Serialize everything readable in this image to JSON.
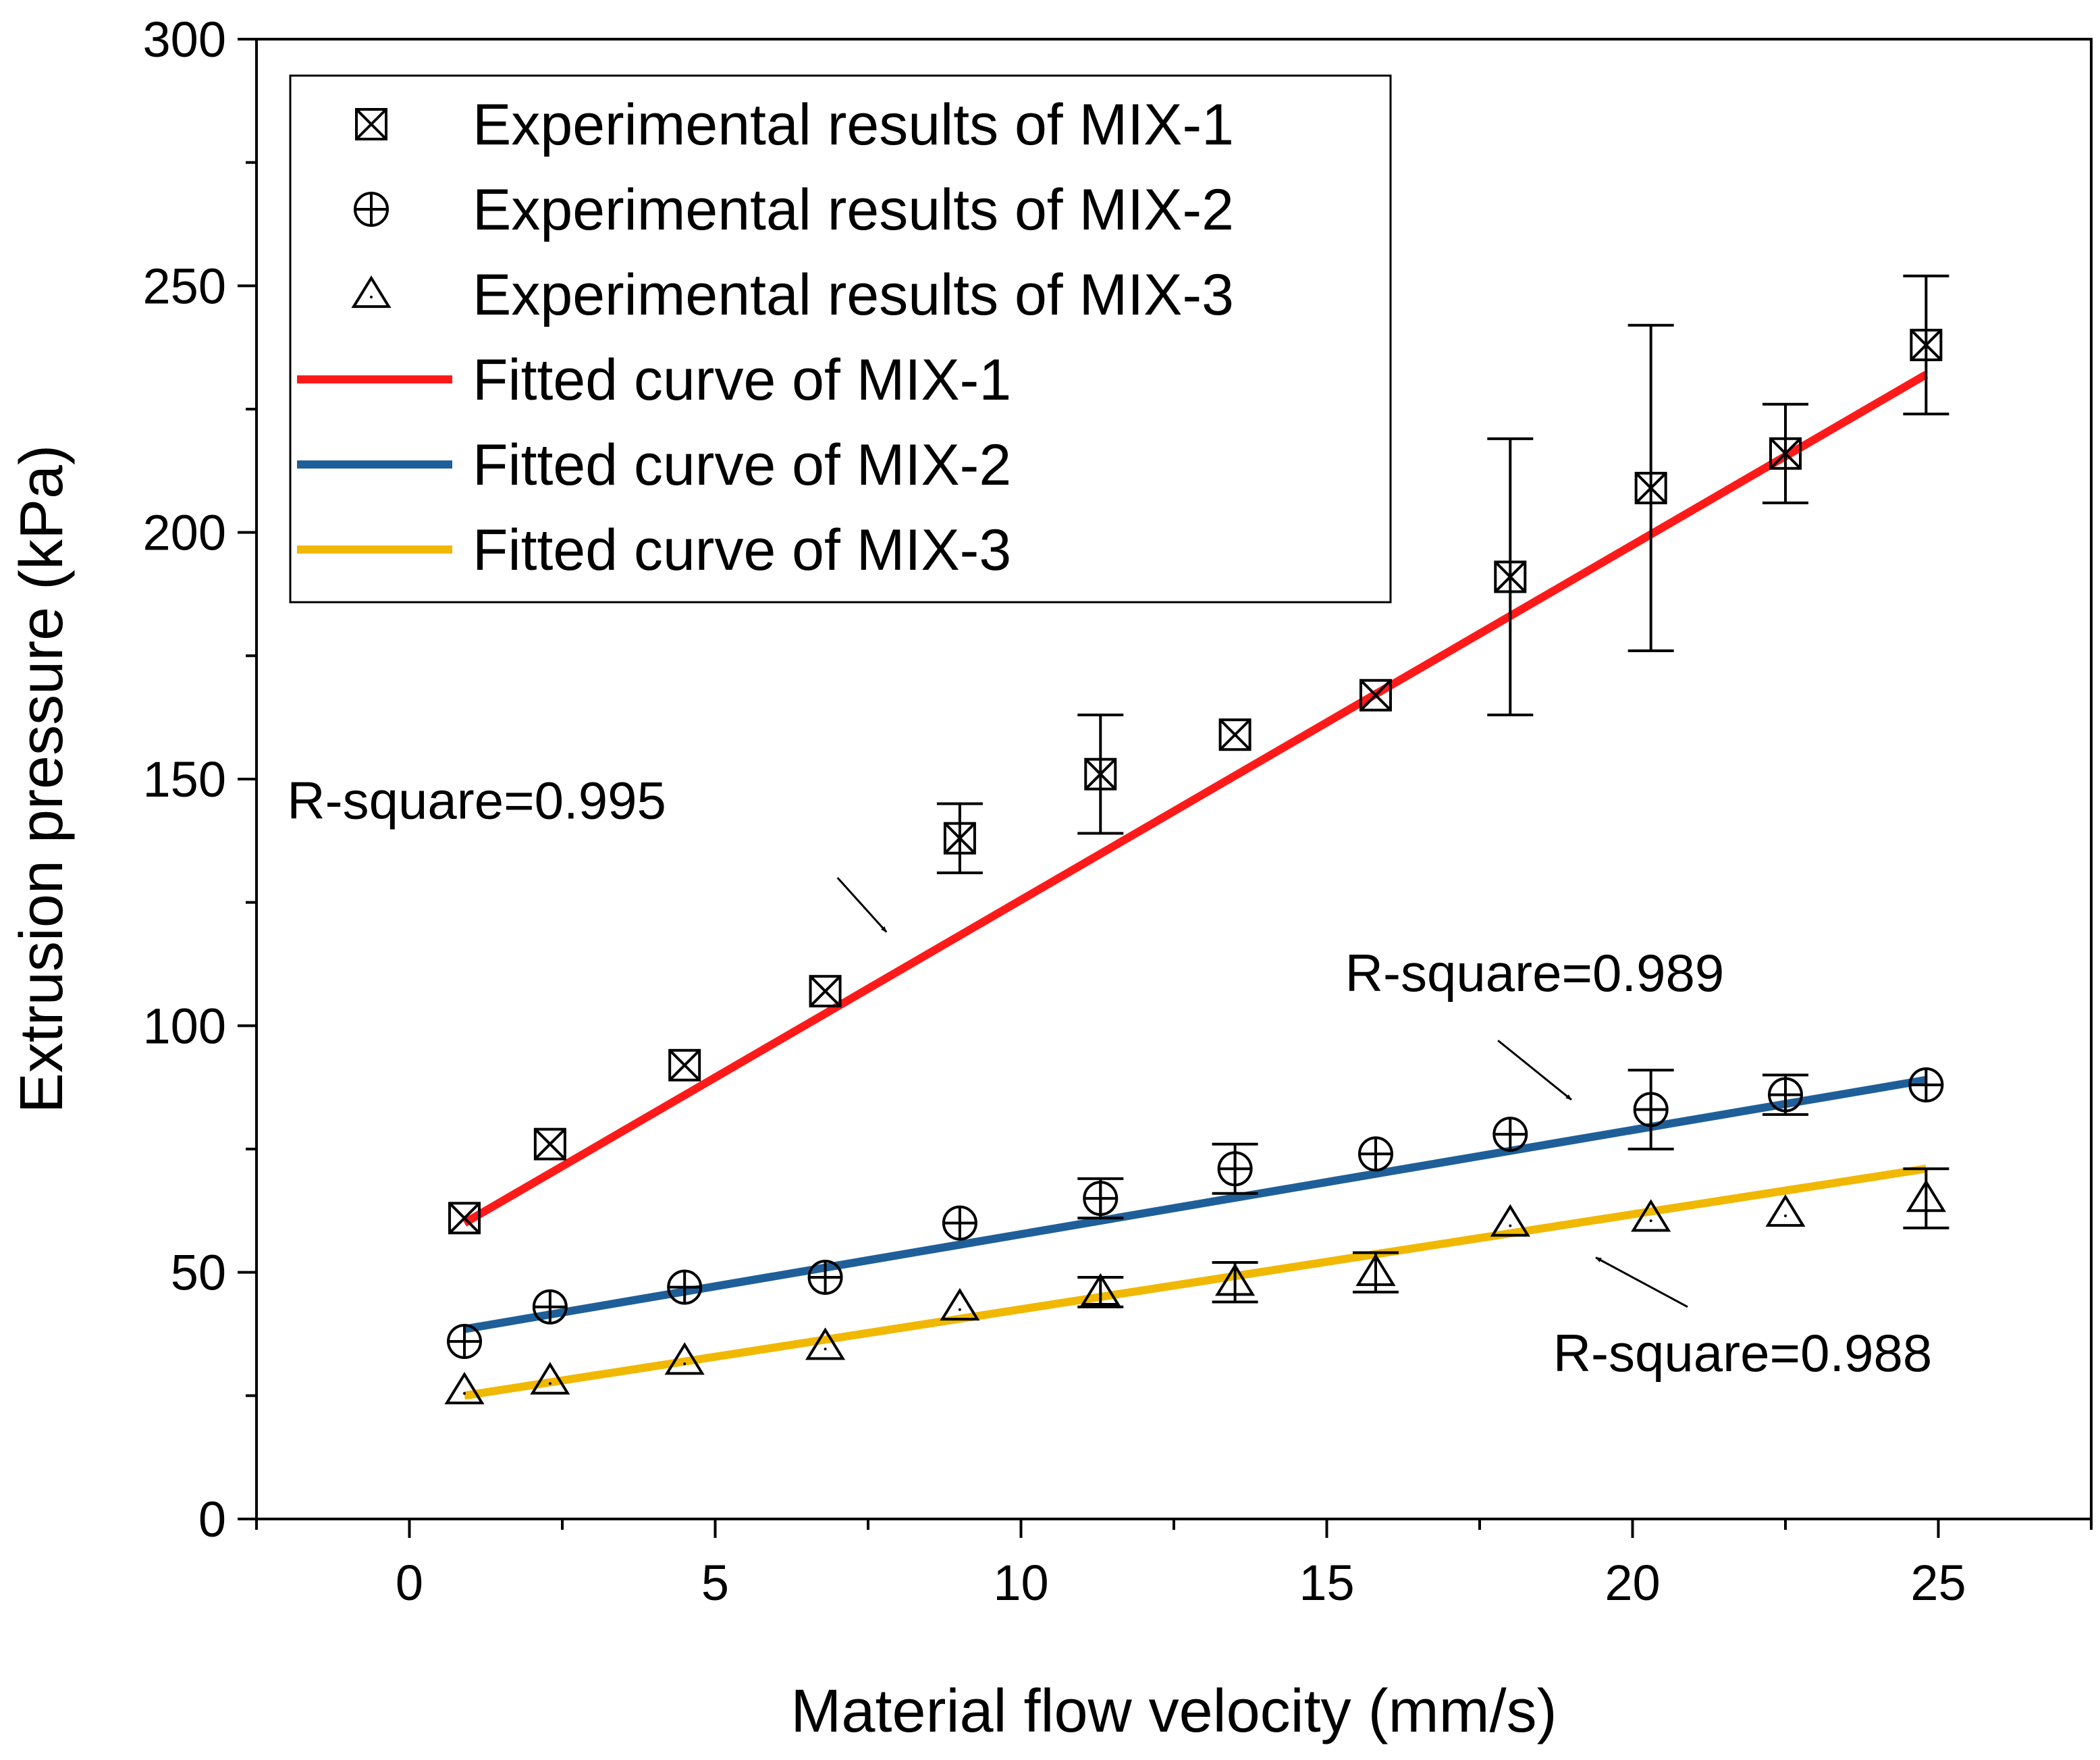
{
  "chart_data": {
    "type": "scatter",
    "title": "",
    "xlabel": "Material flow velocity (mm/s)",
    "ylabel": "Extrusion pressure (kPa)",
    "xlim": [
      -2.5,
      27.5
    ],
    "ylim": [
      0,
      300
    ],
    "xticks": [
      0,
      5,
      10,
      15,
      20,
      25
    ],
    "yticks": [
      0,
      50,
      100,
      150,
      200,
      250,
      300
    ],
    "grid": false,
    "legend_position": "top-left",
    "series": [
      {
        "name": "Experimental results of MIX-1",
        "kind": "scatter",
        "marker": "boxed-x",
        "color": "#000000",
        "x": [
          0.9,
          2.3,
          4.5,
          6.8,
          9.0,
          11.3,
          13.5,
          15.8,
          18.0,
          20.3,
          22.5,
          24.8
        ],
        "y": [
          61,
          76,
          92,
          107,
          138,
          151,
          159,
          167,
          191,
          209,
          216,
          238
        ],
        "yerr": [
          0,
          0,
          0,
          0,
          7,
          12,
          0,
          0,
          28,
          33,
          10,
          14
        ]
      },
      {
        "name": "Experimental results of MIX-2",
        "kind": "scatter",
        "marker": "circle-plus",
        "color": "#000000",
        "x": [
          0.9,
          2.3,
          4.5,
          6.8,
          9.0,
          11.3,
          13.5,
          15.8,
          18.0,
          20.3,
          22.5,
          24.8
        ],
        "y": [
          36,
          43,
          47,
          49,
          60,
          65,
          71,
          74,
          78,
          83,
          86,
          88
        ],
        "yerr": [
          0,
          0,
          0,
          0,
          0,
          4,
          5,
          0,
          0,
          8,
          4,
          0
        ]
      },
      {
        "name": "Experimental results of MIX-3",
        "kind": "scatter",
        "marker": "triangle",
        "color": "#000000",
        "x": [
          0.9,
          2.3,
          4.5,
          6.8,
          9.0,
          11.3,
          13.5,
          15.8,
          18.0,
          20.3,
          22.5,
          24.8
        ],
        "y": [
          26,
          28,
          32,
          35,
          43,
          46,
          48,
          50,
          60,
          61,
          62,
          65
        ],
        "yerr": [
          0,
          0,
          0,
          0,
          0,
          3,
          4,
          4,
          0,
          0,
          0,
          6
        ]
      },
      {
        "name": "Fitted curve of MIX-1",
        "kind": "line",
        "color": "#ff1a1a",
        "x": [
          0.9,
          24.8
        ],
        "y": [
          60,
          232
        ]
      },
      {
        "name": "Fitted curve of MIX-2",
        "kind": "line",
        "color": "#1f5f99",
        "x": [
          0.9,
          24.8
        ],
        "y": [
          38.5,
          89
        ]
      },
      {
        "name": "Fitted curve of MIX-3",
        "kind": "line",
        "color": "#f0b800",
        "x": [
          0.9,
          24.8
        ],
        "y": [
          25,
          71
        ]
      }
    ],
    "annotations": [
      {
        "text": "R-square=0.995",
        "text_at": [
          -2.0,
          142
        ],
        "arrow_from": [
          7.0,
          130
        ],
        "arrow_to": [
          7.8,
          119
        ]
      },
      {
        "text": "R-square=0.989",
        "text_at": [
          15.3,
          107
        ],
        "arrow_from": [
          17.8,
          97
        ],
        "arrow_to": [
          19.0,
          85
        ]
      },
      {
        "text": "R-square=0.988",
        "text_at": [
          18.7,
          30
        ],
        "arrow_from": [
          20.9,
          43
        ],
        "arrow_to": [
          19.4,
          53
        ]
      }
    ]
  }
}
